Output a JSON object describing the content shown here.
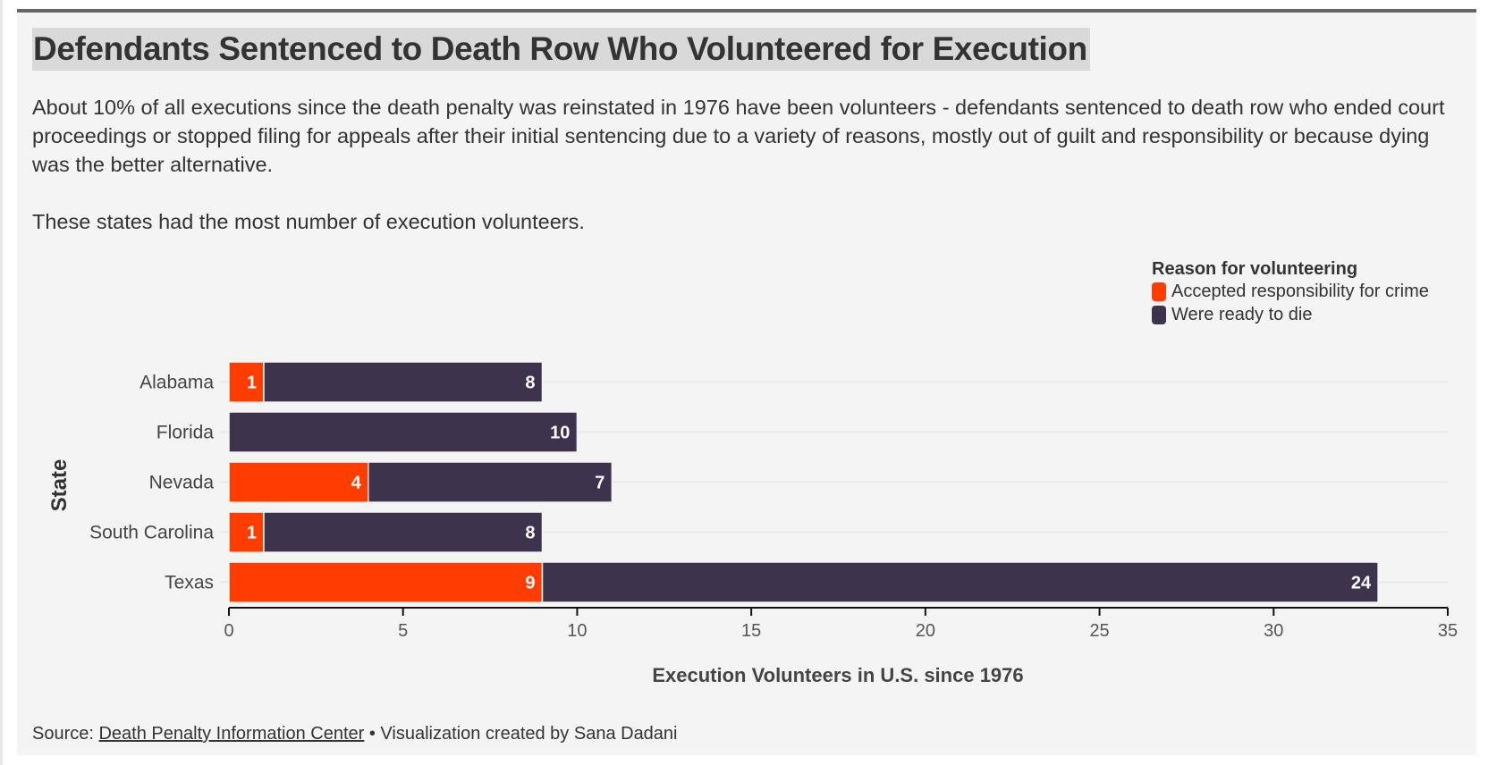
{
  "title": "Defendants Sentenced to Death Row Who Volunteered for Execution",
  "description": [
    "About 10% of all executions since the death penalty was reinstated in 1976 have been volunteers - defendants sentenced to death row who ended court proceedings or stopped filing for appeals after their initial sentencing due to a variety of reasons, mostly out of guilt and responsibility or because dying was the better alternative.",
    "These states had the most number of execution volunteers."
  ],
  "legend": {
    "title": "Reason for volunteering",
    "items": [
      {
        "label": "Accepted responsibility for crime",
        "color": "#ff3d00"
      },
      {
        "label": "Were ready to die",
        "color": "#3d334d"
      }
    ]
  },
  "footer": {
    "source_prefix": "Source: ",
    "source_link": "Death Penalty Information Center",
    "credit": " • Visualization created by Sana Dadani"
  },
  "chart_data": {
    "type": "bar",
    "orientation": "horizontal",
    "stacked": true,
    "title": "Defendants Sentenced to Death Row Who Volunteered for Execution",
    "xlabel": "Execution Volunteers in U.S. since 1976",
    "ylabel": "State",
    "categories": [
      "Alabama",
      "Florida",
      "Nevada",
      "South Carolina",
      "Texas"
    ],
    "series": [
      {
        "name": "Accepted responsibility for crime",
        "color": "#ff3d00",
        "values": [
          1,
          0,
          4,
          1,
          9
        ]
      },
      {
        "name": "Were ready to die",
        "color": "#3d334d",
        "values": [
          8,
          10,
          7,
          8,
          24
        ]
      }
    ],
    "xlim": [
      0,
      35
    ],
    "xticks": [
      0,
      5,
      10,
      15,
      20,
      25,
      30,
      35
    ],
    "grid": "horizontal",
    "legend_position": "top-right"
  }
}
